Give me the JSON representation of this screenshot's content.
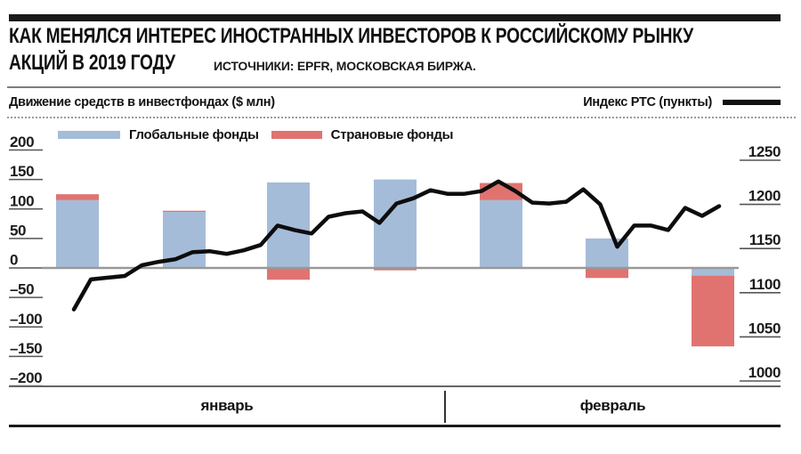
{
  "header": {
    "title_line1": "КАК МЕНЯЛСЯ ИНТЕРЕС ИНОСТРАННЫХ ИНВЕСТОРОВ К РОССИЙСКОМУ РЫНКУ",
    "title_line2": "АКЦИЙ В 2019 ГОДУ",
    "source": "ИСТОЧНИКИ: EPFR, МОСКОВСКАЯ БИРЖА."
  },
  "axis_headers": {
    "left": "Движение средств в инвестфондах ($ млн)",
    "right": "Индекс РТС (пункты)"
  },
  "legend": [
    {
      "label": "Глобальные фонды",
      "color": "#a5bcd9"
    },
    {
      "label": "Страновые фонды",
      "color": "#e0736f"
    }
  ],
  "colors": {
    "accent_bar": "#1a1a1a",
    "rts_line": "#0d0d0d",
    "zero_line": "#999999",
    "tick_line": "#555555",
    "global_funds": "#a5bcd9",
    "country_funds": "#e0736f"
  },
  "chart_data": {
    "type": "bar",
    "subtype": "stacked weekly bars (left axis) with daily overlay line (right axis)",
    "title": "КАК МЕНЯЛСЯ ИНТЕРЕС ИНОСТРАННЫХ ИНВЕСТОРОВ К РОССИЙСКОМУ РЫНКУ АКЦИЙ В 2019 ГОДУ",
    "grid": "off, zero line only",
    "legend_position": "top-left",
    "bar_months": [
      "январь",
      "январь",
      "январь",
      "январь",
      "февраль",
      "февраль",
      "февраль"
    ],
    "series": [
      {
        "key": "global",
        "name": "Глобальные фонды",
        "color": "#a5bcd9",
        "values": [
          115,
          95,
          145,
          150,
          115,
          50,
          -13
        ]
      },
      {
        "key": "country",
        "name": "Страновые фонды",
        "color": "#e0736f",
        "values": [
          10,
          2,
          -20,
          -4,
          29,
          -17,
          -120
        ]
      }
    ],
    "line_series": {
      "name": "Индекс РТС (пункты)",
      "axis": "right",
      "color": "#0d0d0d",
      "values": [
        1081,
        1115,
        1117,
        1119,
        1131,
        1135,
        1138,
        1146,
        1147,
        1144,
        1148,
        1154,
        1176,
        1171,
        1167,
        1186,
        1190,
        1192,
        1179,
        1201,
        1207,
        1216,
        1212,
        1212,
        1215,
        1226,
        1215,
        1202,
        1201,
        1203,
        1217,
        1200,
        1152,
        1176,
        1176,
        1171,
        1196,
        1187,
        1198
      ]
    },
    "left_axis": {
      "label": "Движение средств в инвестфондах ($ млн)",
      "ticks": [
        200,
        150,
        100,
        50,
        0,
        -50,
        -100,
        -150,
        -200
      ],
      "tick_labels": [
        "200",
        "150",
        "100",
        "50",
        "0",
        "–50",
        "–100",
        "–150",
        "–200"
      ],
      "range": [
        -200,
        200
      ]
    },
    "right_axis": {
      "label": "Индекс РТС (пункты)",
      "ticks": [
        1250,
        1200,
        1150,
        1100,
        1050,
        1000
      ],
      "tick_labels": [
        "1250",
        "1200",
        "1150",
        "1100",
        "1050",
        "1000"
      ],
      "range": [
        1000,
        1250
      ]
    },
    "x_axis": {
      "labels": [
        "январь",
        "февраль"
      ]
    }
  }
}
